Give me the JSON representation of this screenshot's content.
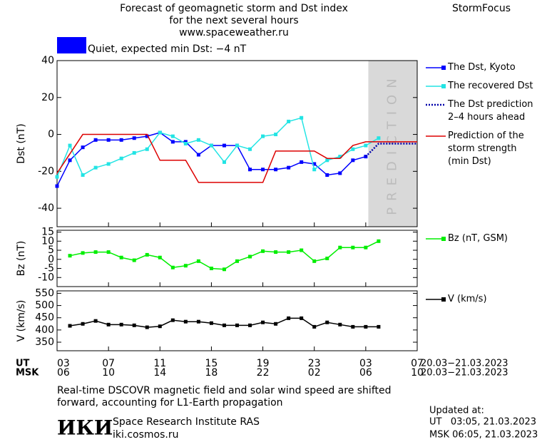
{
  "header": {
    "title_lines": [
      "Forecast of geomagnetic storm and Dst index",
      "for the next several hours",
      "www.spaceweather.ru"
    ],
    "brand": "StormFocus"
  },
  "chart_data": [
    {
      "type": "line",
      "ylabel": "Dst (nT)",
      "annotation": "Quiet, expected min Dst: −4 nT",
      "status_color": "#0000ff",
      "xlim": [
        0,
        28
      ],
      "ylim": [
        -50,
        40
      ],
      "yticks": [
        40,
        20,
        0,
        -20,
        -40
      ],
      "shade": {
        "from": 24.2,
        "to": 28,
        "label": "PREDICTION"
      },
      "series": [
        {
          "name": "The Dst, Kyoto",
          "color": "#0000ff",
          "marker": "square",
          "dash": false,
          "x": [
            0,
            1,
            2,
            3,
            4,
            5,
            6,
            7,
            8,
            9,
            10,
            11,
            12,
            13,
            14,
            15,
            16,
            17,
            18,
            19,
            20,
            21,
            22,
            23,
            24
          ],
          "values": [
            -28,
            -14,
            -7,
            -3,
            -3,
            -3,
            -2,
            -1,
            1,
            -4,
            -4,
            -11,
            -6,
            -6,
            -6,
            -19,
            -19,
            -19,
            -18,
            -15,
            -16,
            -22,
            -21,
            -14,
            -12
          ]
        },
        {
          "name": "The recovered Dst",
          "color": "#22e4e4",
          "marker": "square",
          "dash": false,
          "x": [
            0,
            1,
            2,
            3,
            4,
            5,
            6,
            7,
            8,
            9,
            10,
            11,
            12,
            13,
            14,
            15,
            16,
            17,
            18,
            19,
            20,
            21,
            22,
            23,
            24,
            25
          ],
          "values": [
            -23,
            -6,
            -22,
            -18,
            -16,
            -13,
            -10,
            -8,
            1,
            -1,
            -5,
            -3,
            -6,
            -15,
            -6,
            -8,
            -1,
            0,
            7,
            9,
            -19,
            -14,
            -12,
            -8,
            -6,
            -2
          ]
        },
        {
          "name": "The Dst prediction 2–4 hours ahead",
          "color": "#0000aa",
          "marker": "none",
          "dash": true,
          "x": [
            24,
            25,
            28
          ],
          "values": [
            -12,
            -5,
            -5
          ]
        },
        {
          "name": "Prediction of the storm strength (min Dst)",
          "color": "#dd0000",
          "marker": "none",
          "dash": false,
          "x": [
            0,
            2,
            7,
            8,
            10,
            11,
            16,
            17,
            20,
            21,
            22,
            23,
            24,
            28
          ],
          "values": [
            -21,
            0,
            0,
            -14,
            -14,
            -26,
            -26,
            -9,
            -9,
            -13,
            -13,
            -6,
            -4,
            -4
          ]
        }
      ]
    },
    {
      "type": "line",
      "ylabel": "Bz (nT)",
      "xlim": [
        0,
        28
      ],
      "ylim": [
        -15,
        16
      ],
      "yticks": [
        15,
        10,
        5,
        0,
        -5,
        -10
      ],
      "series": [
        {
          "name": "Bz (nT, GSM)",
          "color": "#00ee00",
          "marker": "square",
          "dash": false,
          "x": [
            1,
            2,
            3,
            4,
            5,
            6,
            7,
            8,
            9,
            10,
            11,
            12,
            13,
            14,
            15,
            16,
            17,
            18,
            19,
            20,
            21,
            22,
            23,
            24,
            25
          ],
          "values": [
            2,
            3.5,
            4,
            4,
            1,
            -0.5,
            2.5,
            1,
            -4.5,
            -3.5,
            -1,
            -5,
            -5.5,
            -1,
            1.5,
            4.5,
            4,
            4,
            5,
            -1,
            0.5,
            6.5,
            6.5,
            6.5,
            10
          ]
        }
      ]
    },
    {
      "type": "line",
      "ylabel": "V (km/s)",
      "xlim": [
        0,
        28
      ],
      "ylim": [
        315,
        560
      ],
      "yticks": [
        550,
        500,
        450,
        400,
        350
      ],
      "xrow_label": "UT",
      "x2row_label": "MSK",
      "xticks": [
        {
          "value": 0,
          "label": "03"
        },
        {
          "value": 4,
          "label": "07"
        },
        {
          "value": 8,
          "label": "11"
        },
        {
          "value": 12,
          "label": "15"
        },
        {
          "value": 16,
          "label": "19"
        },
        {
          "value": 20,
          "label": "23"
        },
        {
          "value": 24,
          "label": "03"
        },
        {
          "value": 28,
          "label": "07"
        }
      ],
      "x2ticks": [
        {
          "value": 0,
          "label": "06"
        },
        {
          "value": 4,
          "label": "10"
        },
        {
          "value": 8,
          "label": "14"
        },
        {
          "value": 12,
          "label": "18"
        },
        {
          "value": 16,
          "label": "22"
        },
        {
          "value": 20,
          "label": "02"
        },
        {
          "value": 24,
          "label": "06"
        },
        {
          "value": 28,
          "label": "10"
        }
      ],
      "xrange_text": "20.03−21.03.2023",
      "x2range_text": "20.03−21.03.2023",
      "series": [
        {
          "name": "V (km/s)",
          "color": "#000000",
          "marker": "square",
          "dash": false,
          "x": [
            1,
            2,
            3,
            4,
            5,
            6,
            7,
            8,
            9,
            10,
            11,
            12,
            13,
            14,
            15,
            16,
            17,
            18,
            19,
            20,
            21,
            22,
            23,
            24,
            25
          ],
          "values": [
            417,
            425,
            437,
            422,
            422,
            419,
            411,
            415,
            440,
            434,
            434,
            428,
            419,
            419,
            419,
            431,
            425,
            448,
            448,
            413,
            431,
            422,
            413,
            413,
            413
          ]
        }
      ]
    }
  ],
  "footer": {
    "note_lines": [
      "Real-time DSCOVR magnetic field and solar wind speed are shifted",
      "forward, accounting for L1-Earth propagation"
    ],
    "logo": "ИКИ",
    "institute": "Space Research Institute RAS",
    "site": "iki.cosmos.ru",
    "updated_label": "Updated at:",
    "updated_ut": "UT   03:05, 21.03.2023",
    "updated_msk": "MSK 06:05, 21.03.2023"
  }
}
